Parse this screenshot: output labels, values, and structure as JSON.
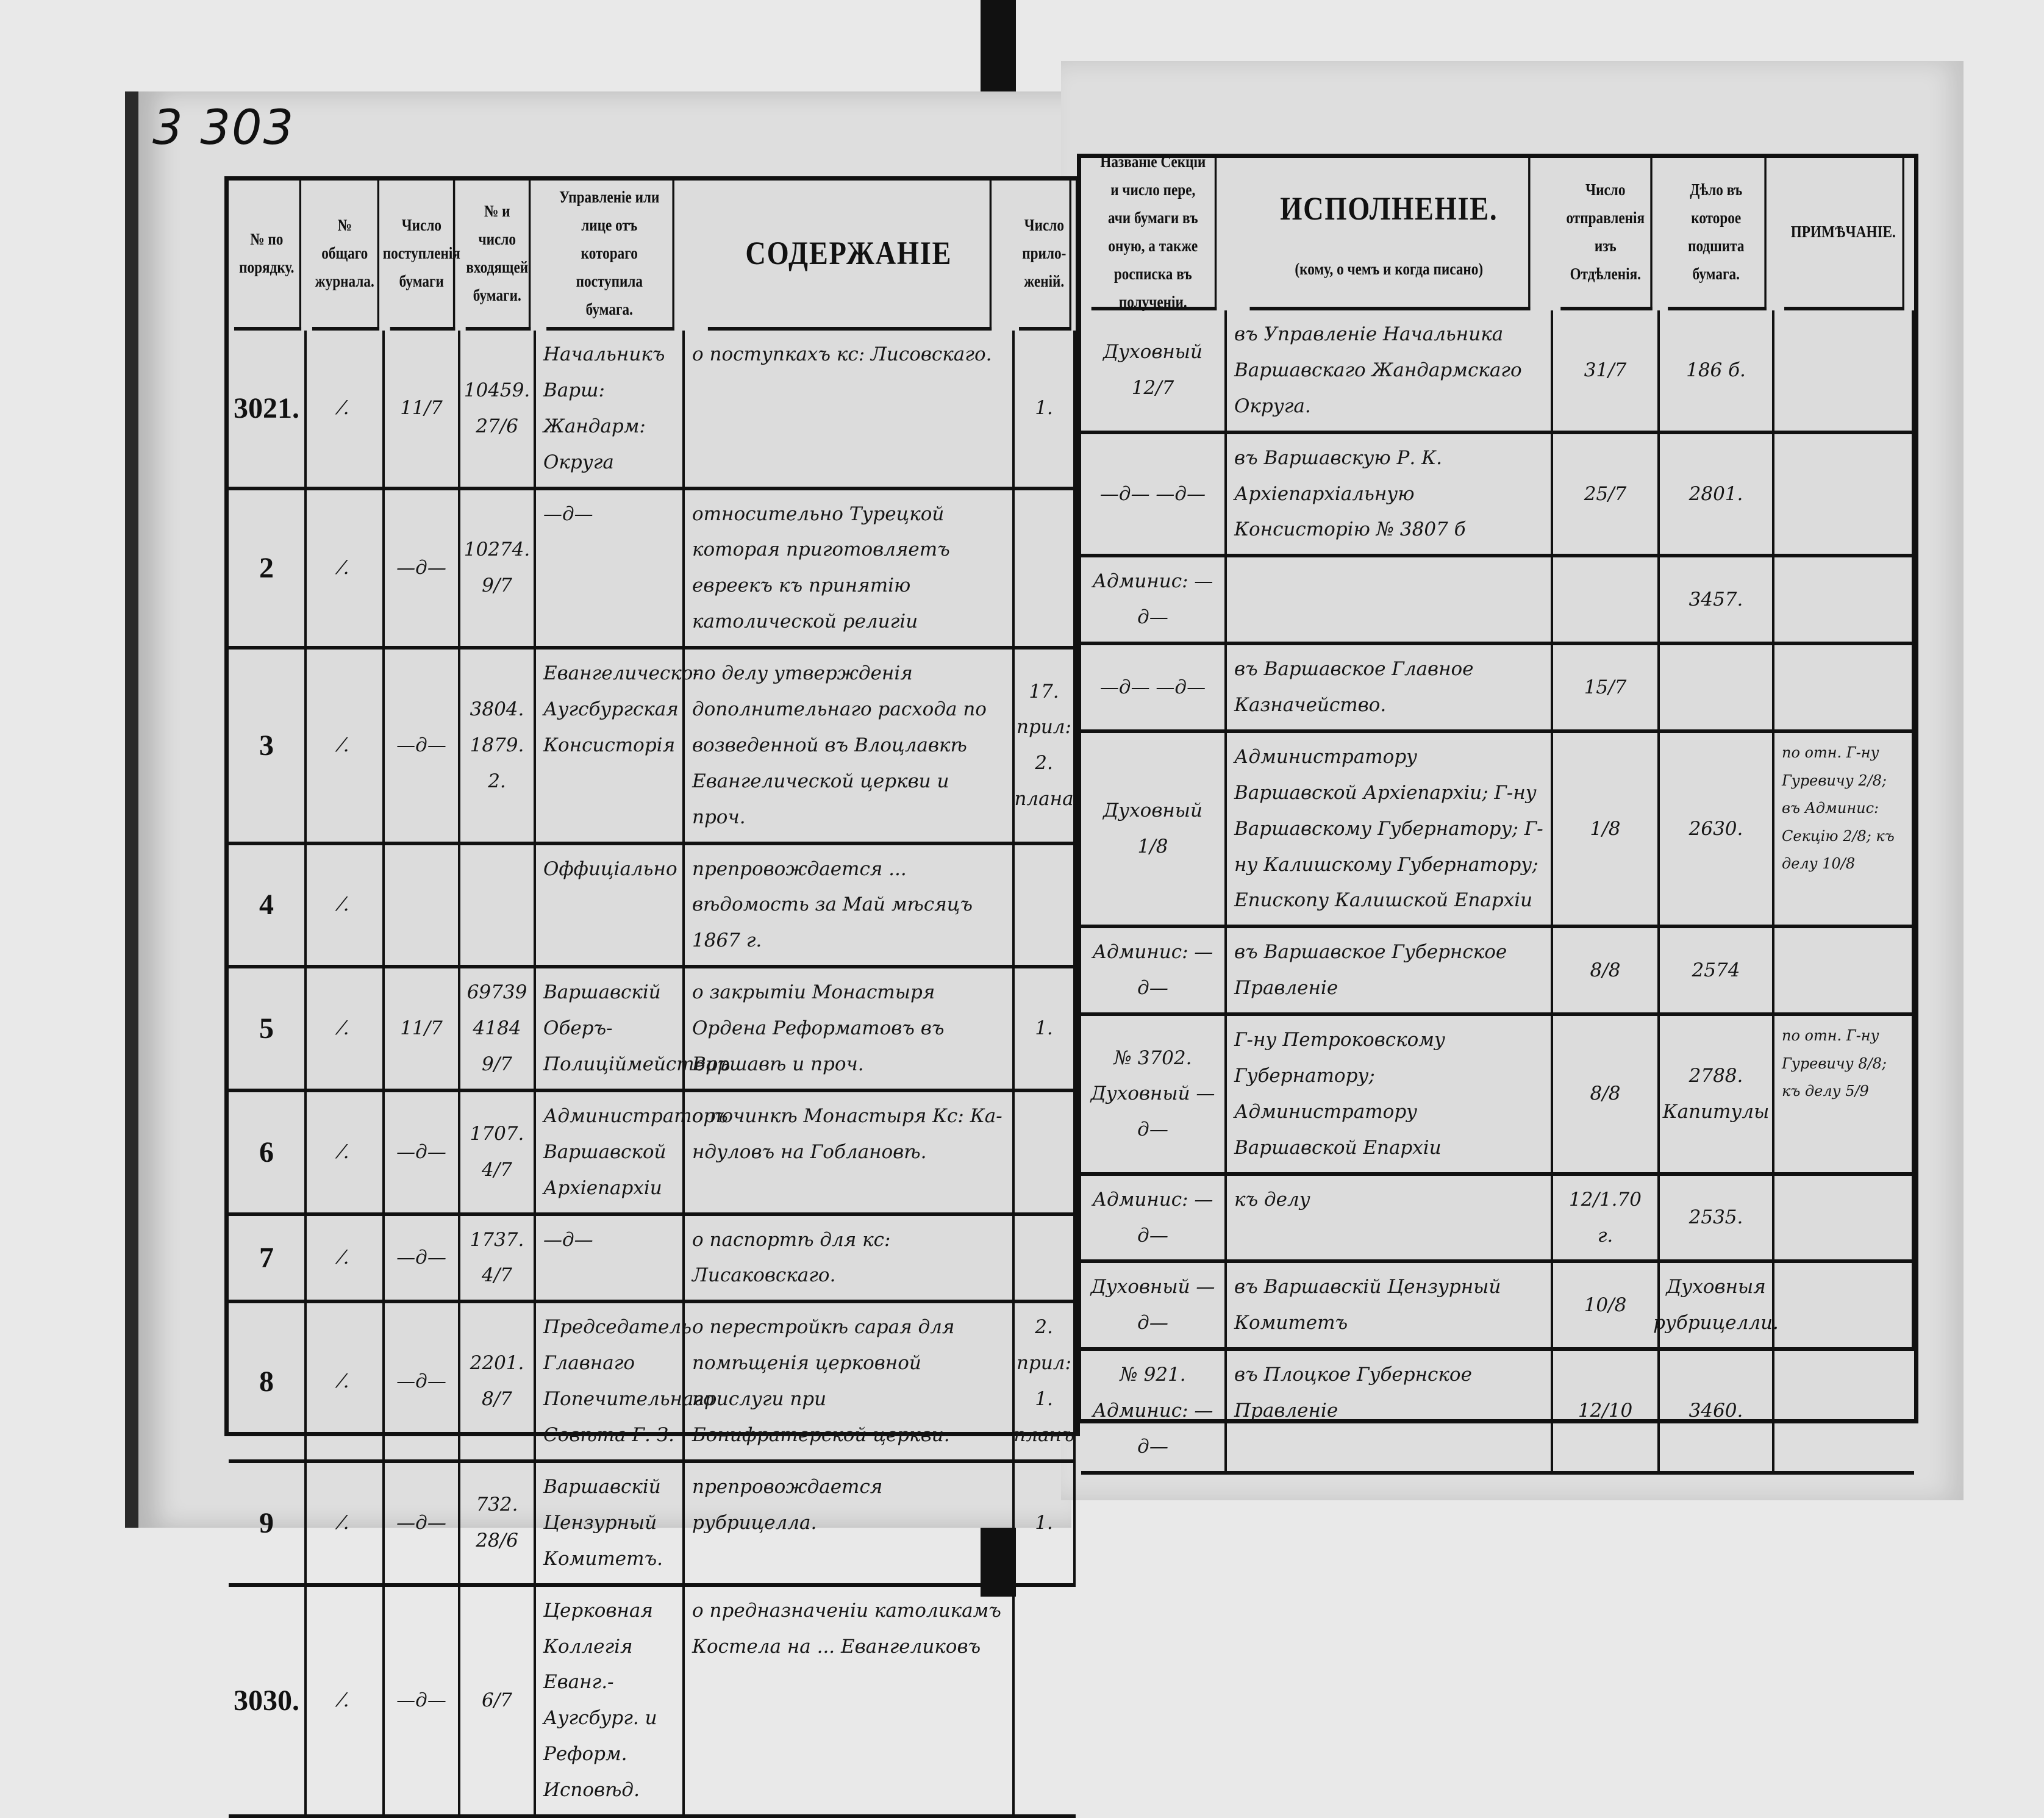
{
  "page_stamp": "3  303",
  "left_table": {
    "headers": [
      "№ по порядку.",
      "№ общаго журнала.",
      "Число поступленія бумаги",
      "№ и число входящей бумаги.",
      "Управленіе или лице отъ котораго поступила бумага.",
      "СОДЕРЖАНІЕ",
      "Число прило-женій."
    ],
    "rows": [
      [
        "3021.",
        "⁄.",
        "11/7",
        "10459. 27/6",
        "Начальникъ Варш: Жандарм: Округа",
        "о поступкахъ кс: Лисовскаго.",
        "1."
      ],
      [
        "2",
        "⁄.",
        "—д—",
        "10274. 9/7",
        "—д—",
        "относительно Турецкой которая приготовляетъ евреекъ къ принятію католической религіи",
        ""
      ],
      [
        "3",
        "⁄.",
        "—д—",
        "3804. 1879. 2.",
        "Евангелическо-Аугсбургская Консисторія",
        "по делу утвержденія дополнительнаго расхода по возведенной въ Влоцлавкѣ Евангелической церкви и проч.",
        "17. прил: 2. плана"
      ],
      [
        "4",
        "⁄.",
        "",
        "",
        "Оффиціально",
        "препровождается ... вѣдомость за Май мѣсяцъ 1867 г.",
        ""
      ],
      [
        "5",
        "⁄.",
        "11/7",
        "69739 4184 9/7",
        "Варшавскій Оберъ-Полиціймейстеръ",
        "о закрытіи Монастыря Ордена Реформатовъ въ Варшавѣ и проч.",
        "1."
      ],
      [
        "6",
        "⁄.",
        "—д—",
        "1707. 4/7",
        "Администраторъ Варшавской Архіепархіи",
        "о починкѣ Монастыря Кс: Ка-ндуловъ на Гоблановѣ.",
        ""
      ],
      [
        "7",
        "⁄.",
        "—д—",
        "1737. 4/7",
        "—д—",
        "о паспортѣ для кс: Лисаковскаго.",
        ""
      ],
      [
        "8",
        "⁄.",
        "—д—",
        "2201. 8/7",
        "Председатель Главнаго Попечительнаго Совѣта Г. З.",
        "о перестройкѣ сарая для помѣщенія церковной прислуги при Бонифратерской церкви.",
        "2. прил: 1. планъ"
      ],
      [
        "9",
        "⁄.",
        "—д—",
        "732. 28/6",
        "Варшавскій Цензурный Комитетъ.",
        "препровождается рубрицелла.",
        "1."
      ],
      [
        "3030.",
        "⁄.",
        "—д—",
        "6/7",
        "Церковная Коллегія Еванг.-Аугсбург. и Реформ. Исповѣд.",
        "о предназначеніи католикамъ Костела на ... Евангеликовъ",
        ""
      ]
    ]
  },
  "right_table": {
    "headers": {
      "section": "Названіе Секціи и число пере, ачи бумаги въ оную, а также росписка въ полученіи.",
      "execution_title": "ИСПОЛНЕНІЕ.",
      "execution_sub": "(кому, о чемъ и когда писано)",
      "sent": "Число отправленія изъ Отдѣленія.",
      "case": "Дѣло въ которое подшита бумага.",
      "note": "ПРИМѢЧАНІЕ."
    },
    "rows": [
      [
        "Духовный 12/7",
        "въ Управленіе Начальника Варшавскаго Жандармскаго Округа.",
        "31/7",
        "186 б.",
        ""
      ],
      [
        "—д— —д—",
        "въ Варшавскую Р. К. Архіепархіальную Консисторію  № 3807 б",
        "25/7",
        "2801.",
        ""
      ],
      [
        "Админис: —д—",
        "",
        "",
        "3457.",
        ""
      ],
      [
        "—д— —д—",
        "въ Варшавское Главное Казначейство.",
        "15/7",
        "",
        ""
      ],
      [
        "Духовный 1/8",
        "Администратору Варшавской Архіепархіи; Г-ну Варшавскому Губернатору; Г-ну Калишскому Губернатору; Епископу Калишской Епархіи",
        "1/8",
        "2630.",
        "по отн. Г-ну Гуревичу 2/8; въ Админис: Секцію 2/8; къ делу 10/8"
      ],
      [
        "Админис: —д—",
        "въ Варшавское Губернское Правленіе",
        "8/8",
        "2574",
        ""
      ],
      [
        "№ 3702. Духовный —д—",
        "Г-ну Петроковскому Губернатору; Администратору Варшавской Епархіи",
        "8/8",
        "2788. Капитулы",
        "по отн. Г-ну Гуревичу 8/8; къ делу 5/9"
      ],
      [
        "Админис: —д—",
        "къ делу",
        "12/1.70 г.",
        "2535.",
        ""
      ],
      [
        "Духовный —д—",
        "въ Варшавскій Цензурный Комитетъ",
        "10/8",
        "Духовныя рубрицелли.",
        ""
      ],
      [
        "№ 921. Админис: —д—",
        "въ Плоцкое Губернское Правленіе",
        "12/10",
        "3460.",
        ""
      ]
    ]
  }
}
